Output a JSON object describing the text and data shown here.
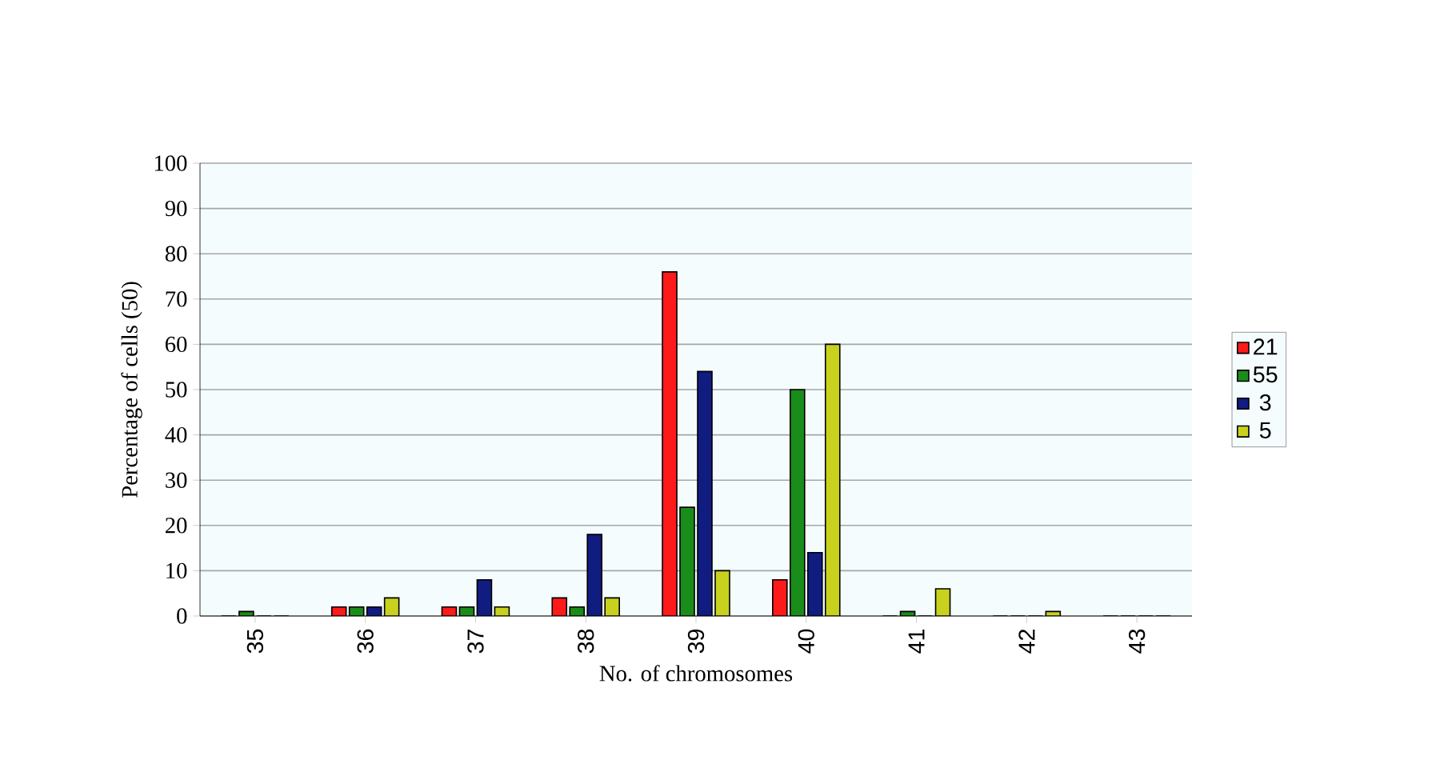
{
  "chart_data": {
    "type": "bar",
    "xlabel": "No. of chromosomes",
    "ylabel": "Percentage of cells (50)",
    "categories": [
      "35",
      "36",
      "37",
      "38",
      "39",
      "40",
      "41",
      "42",
      "43"
    ],
    "series": [
      {
        "name": "21",
        "color": "#ff1a1a",
        "values": [
          0,
          2,
          2,
          4,
          76,
          8,
          0,
          0,
          0
        ]
      },
      {
        "name": "55",
        "color": "#1a8c1a",
        "values": [
          1,
          2,
          2,
          2,
          24,
          50,
          1,
          0,
          0
        ]
      },
      {
        "name": "3",
        "color": "#101c80",
        "values": [
          0,
          2,
          8,
          18,
          54,
          14,
          0,
          0,
          0
        ]
      },
      {
        "name": "5",
        "color": "#c8d21e",
        "values": [
          0,
          4,
          2,
          4,
          10,
          60,
          6,
          1,
          0
        ]
      }
    ],
    "ylim": [
      0,
      100
    ],
    "yticks": [
      0,
      10,
      20,
      30,
      40,
      50,
      60,
      70,
      80,
      90,
      100
    ],
    "grid": "y",
    "legend": "right"
  }
}
